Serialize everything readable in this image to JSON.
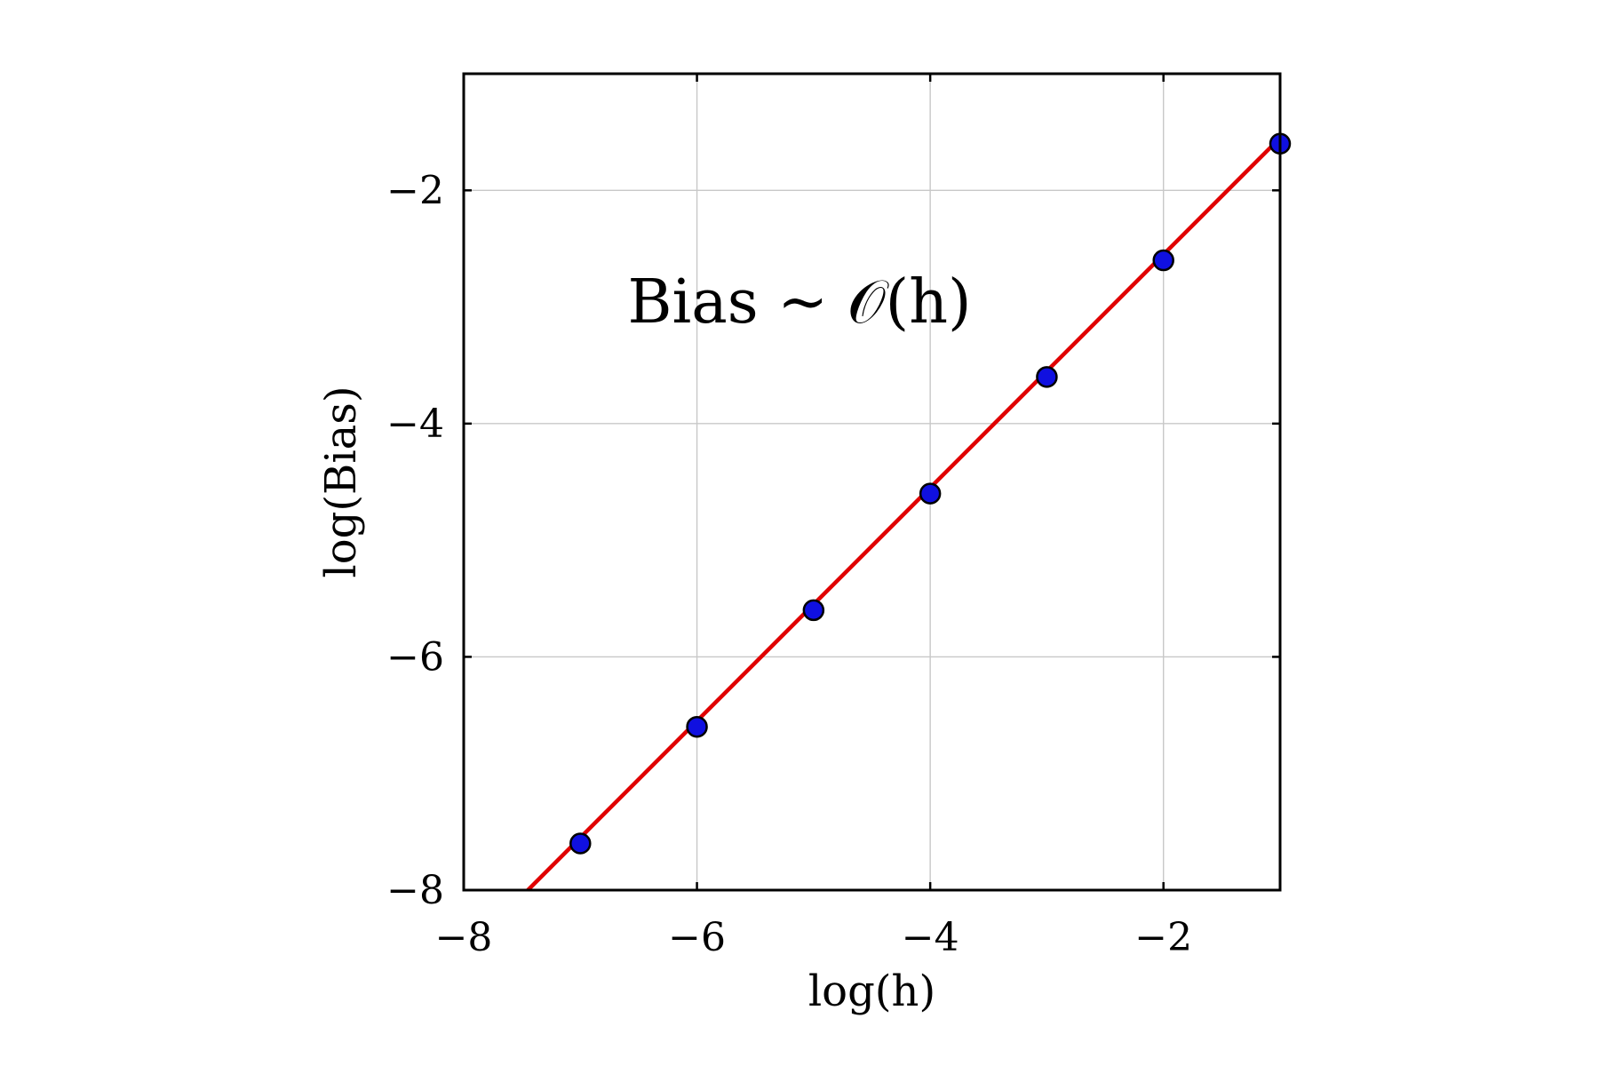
{
  "chart_data": {
    "type": "scatter",
    "xlabel": "log(h)",
    "ylabel": "log(Bias)",
    "xlim": [
      -8,
      -1
    ],
    "ylim": [
      -8,
      -1
    ],
    "xticks": [
      -8,
      -6,
      -4,
      -2
    ],
    "yticks": [
      -8,
      -6,
      -4,
      -2
    ],
    "xtick_labels": [
      "−8",
      "−6",
      "−4",
      "−2"
    ],
    "ytick_labels": [
      "−8",
      "−6",
      "−4",
      "−2"
    ],
    "grid": true,
    "annotation": "Bias ~ 𝒪(h)",
    "series": [
      {
        "kind": "scatter",
        "x": [
          -7,
          -6,
          -5,
          -4,
          -3,
          -2,
          -1
        ],
        "y": [
          -7.6,
          -6.6,
          -5.6,
          -4.6,
          -3.6,
          -2.6,
          -1.6
        ],
        "color": "#1010e0"
      },
      {
        "kind": "line",
        "x": [
          -7.45,
          -1
        ],
        "y": [
          -8.0,
          -1.55
        ],
        "color": "#e00000"
      }
    ]
  }
}
